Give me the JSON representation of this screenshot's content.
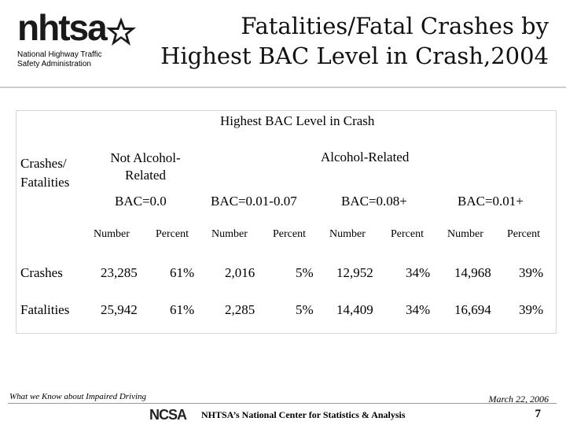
{
  "header": {
    "logo_text": "nhtsa",
    "logo_subtitle_line1": "National Highway Traffic",
    "logo_subtitle_line2": "Safety Administration",
    "title_line1": "Fatalities/Fatal Crashes by",
    "title_line2": "Highest BAC Level in Crash,2004"
  },
  "table": {
    "group_header": "Highest BAC Level in Crash",
    "row_header_label_line1": "Crashes/",
    "row_header_label_line2": "Fatalities",
    "not_alcohol_line1": "Not Alcohol-",
    "not_alcohol_line2": "Related",
    "alcohol_related": "Alcohol-Related",
    "bac_levels": [
      "BAC=0.0",
      "BAC=0.01-0.07",
      "BAC=0.08+",
      "BAC=0.01+"
    ],
    "sub_headers": [
      "Number",
      "Percent",
      "Number",
      "Percent",
      "Number",
      "Percent",
      "Number",
      "Percent"
    ],
    "rows": [
      {
        "label": "Crashes",
        "values": [
          "23,285",
          "61%",
          "2,016",
          "5%",
          "12,952",
          "34%",
          "14,968",
          "39%"
        ]
      },
      {
        "label": "Fatalities",
        "values": [
          "25,942",
          "61%",
          "2,285",
          "5%",
          "14,409",
          "34%",
          "16,694",
          "39%"
        ]
      }
    ]
  },
  "footer": {
    "left_note": "What we Know about Impaired Driving",
    "date": "March 22, 2006",
    "ncsa_logo": "NCSA",
    "center_text": "NHTSA’s National Center for Statistics & Analysis",
    "page_number": "7"
  }
}
